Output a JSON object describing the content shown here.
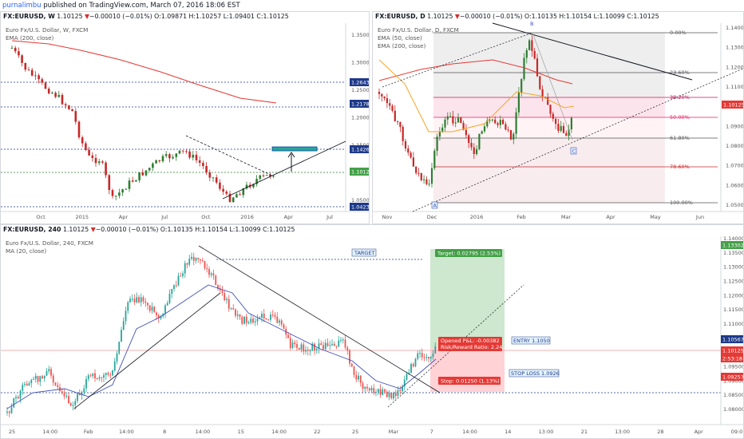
{
  "topbar": {
    "author": "purnalimbu",
    "text": " published on TradingView.com, March 07, 2016 18:06 EST"
  },
  "colors": {
    "up": "#26a69a",
    "down": "#ef5350",
    "upw": "#2e7d32",
    "downw": "#c62828",
    "ema200": "#e53935",
    "ema50": "#f5a623",
    "ma20": "#3f51b5",
    "blue": "#1e3a8a",
    "pink": "#f8bbd0",
    "green": "#a5d6a7",
    "red": "#ffcdd2"
  },
  "weekly": {
    "sym": "FX:EURUSD, W",
    "last": "1.10125",
    "chg": "−0.00010 (−0.01%)",
    "ohlc": "O:1.09871 H:1.10257 L:1.09401 C:1.10125",
    "title": "Euro Fx/U.S. Dollar, W, FXCM",
    "ind": "EMA (200, close)",
    "yticks": [
      "1.35000",
      "1.30000",
      "1.25000",
      "1.20000",
      "1.15000",
      "1.10000",
      "1.05000"
    ],
    "xticks": [
      "Oct",
      "2015",
      "Apr",
      "Jul",
      "Oct",
      "2016",
      "Apr",
      "Jul"
    ],
    "badges": [
      "1.26436",
      "1.21788",
      "1.14262",
      "1.10125",
      "1.04234"
    ]
  },
  "daily": {
    "sym": "FX:EURUSD, D",
    "last": "1.10125",
    "chg": "−0.00010 (−0.01%)",
    "ohlc": "O:1.10135 H:1.10154 L:1.10099 C:1.10125",
    "title": "Euro Fx/U.S. Dollar, D, FXCM",
    "ind1": "EMA (50, close)",
    "ind2": "EMA (200, close)",
    "yticks": [
      "1.14000",
      "1.13000",
      "1.12000",
      "1.11000",
      "1.10000",
      "1.09000",
      "1.08000",
      "1.07000",
      "1.06000",
      "1.05000"
    ],
    "xticks": [
      "Nov",
      "Dec",
      "2016",
      "Feb",
      "Mar",
      "Apr",
      "May",
      "Jun"
    ],
    "fib": [
      "0.00%",
      "23.60%",
      "38.20%",
      "50.00%",
      "61.80%",
      "78.60%",
      "100.00%"
    ],
    "labelA": "A",
    "labelB": "B",
    "labelC": "C",
    "badge": "1.10125"
  },
  "h4": {
    "sym": "FX:EURUSD, 240",
    "last": "1.10125",
    "chg": "−0.00010 (−0.01%)",
    "ohlc": "O:1.10135 H:1.10154 L:1.10099 C:1.10125",
    "title": "Euro Fx/U.S. Dollar, 240, FXCM",
    "ind": "MA (20, close)",
    "yticks": [
      "1.14000",
      "1.13500",
      "1.13000",
      "1.12500",
      "1.12000",
      "1.11500",
      "1.11000",
      "1.10500",
      "1.10000",
      "1.09500",
      "1.09000",
      "1.08500",
      "1.08000"
    ],
    "xticks": [
      "25",
      "14:00",
      "Feb",
      "14:00",
      "8",
      "14:00",
      "15",
      "14:00",
      "22",
      "25",
      "Mar",
      "7",
      "14:00",
      "14",
      "13:00",
      "21",
      "13:00",
      "28",
      "Apr",
      "09:0"
    ],
    "target_label": "TARGET",
    "entry_label": "ENTRY 1.1050",
    "stop_label": "STOP LOSS 1.0926",
    "target_box": "Target: 0.02795 (2.53%)",
    "stop_box": "Stop: 0.01250 (1.13%)",
    "pnl": "Opened P&L: -0.00382",
    "rr": "Risk/Reward Ratio: 2.24",
    "badges": [
      "1.13302",
      "1.10567",
      "1.10125",
      "2:53:18",
      "1.09257"
    ]
  }
}
